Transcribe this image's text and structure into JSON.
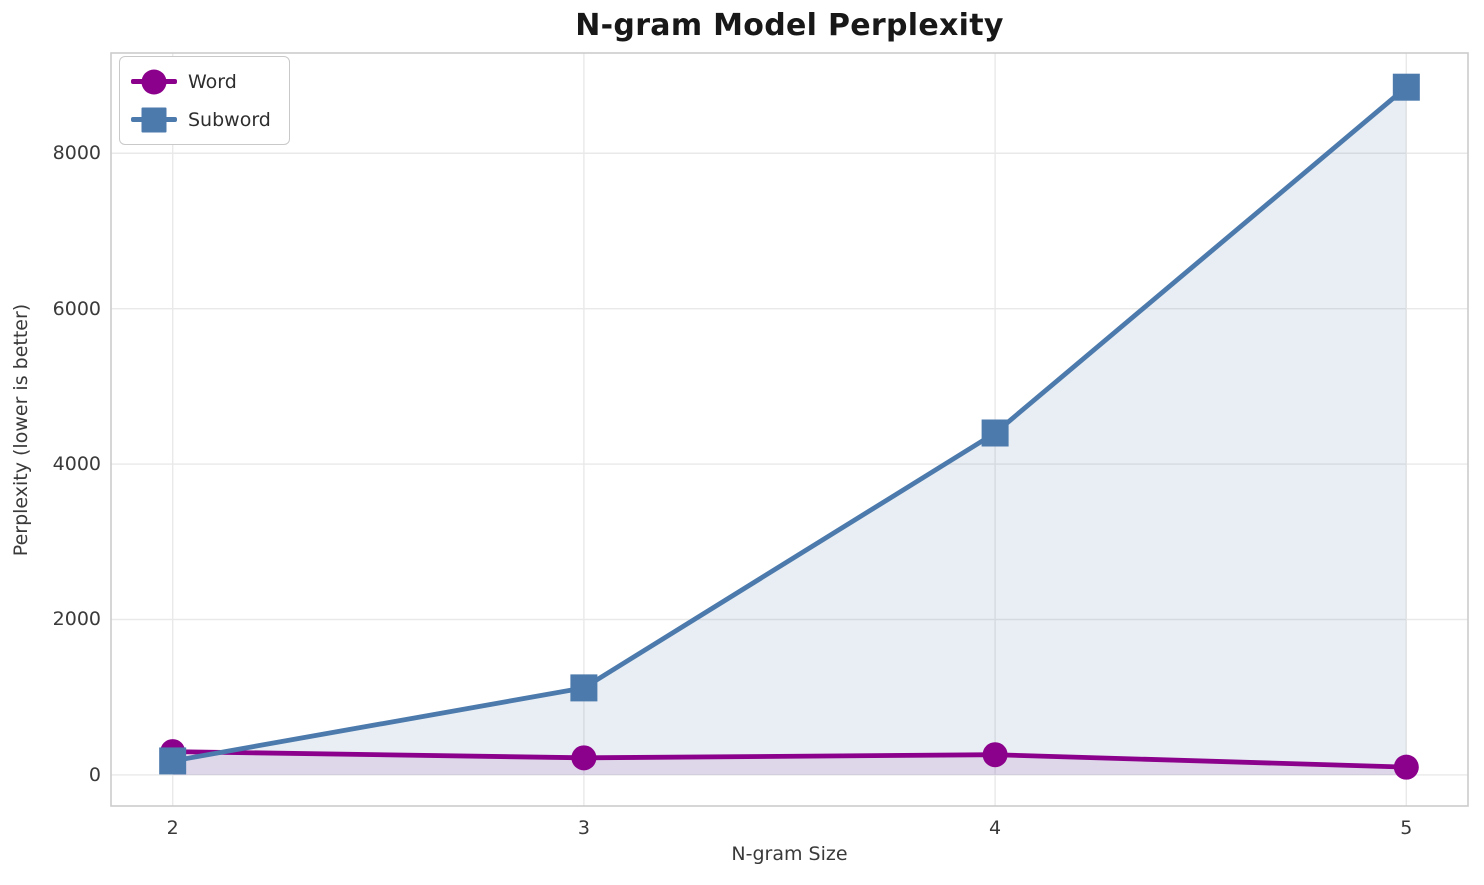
{
  "chart_data": {
    "type": "line",
    "title": "N-gram Model Perplexity",
    "xlabel": "N-gram Size",
    "ylabel": "Perplexity (lower is better)",
    "x": [
      2,
      3,
      4,
      5
    ],
    "series": [
      {
        "name": "Word",
        "marker": "circle",
        "color": "#8B018B",
        "fill": "rgba(139,1,139,0.10)",
        "values": [
          300,
          220,
          260,
          100
        ]
      },
      {
        "name": "Subword",
        "marker": "square",
        "color": "#4C7AAC",
        "fill": "rgba(76,122,172,0.13)",
        "values": [
          180,
          1120,
          4400,
          8850
        ]
      }
    ],
    "xticks": [
      2,
      3,
      4,
      5
    ],
    "yticks": [
      0,
      2000,
      4000,
      6000,
      8000
    ],
    "xtick_labels": [
      "2",
      "3",
      "4",
      "5"
    ],
    "ytick_labels": [
      "0",
      "2000",
      "4000",
      "6000",
      "8000"
    ],
    "xlim": [
      1.85,
      5.15
    ],
    "ylim": [
      -400,
      9290
    ],
    "grid": true,
    "fill_to_zero": true,
    "legend_position": "upper-left",
    "colors": {
      "grid": "#e9e9e9",
      "spine": "#cccccc",
      "tick_text": "#3a3a3a",
      "title_text": "#181818",
      "background": "#ffffff"
    }
  }
}
